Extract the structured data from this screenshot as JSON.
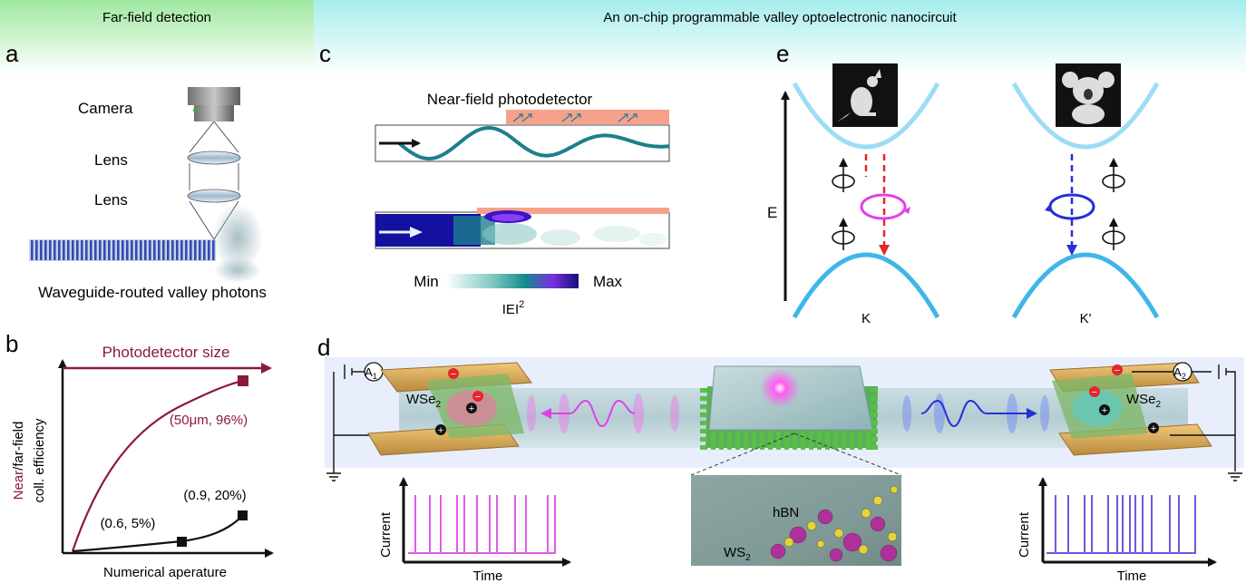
{
  "headers": {
    "left": "Far-field detection",
    "right": "An on-chip programmable valley optoelectronic nanocircuit"
  },
  "panel_a": {
    "letter": "a",
    "camera": "Camera",
    "lens1": "Lens",
    "lens2": "Lens",
    "caption": "Waveguide-routed valley photons"
  },
  "panel_b": {
    "letter": "b",
    "top_label": "Photodetector size",
    "ylabel_near": "Near",
    "ylabel_rest": "/far-field",
    "ylabel_line2": "coll. efficiency",
    "xlabel": "Numerical aperature",
    "red_point": "(50μm, 96%)",
    "black_point1": "(0.6, 5%)",
    "black_point2": "(0.9, 20%)"
  },
  "panel_c": {
    "letter": "c",
    "title": "Near-field photodetector",
    "cb_min": "Min",
    "cb_max": "Max",
    "cb_label_main": "IEI",
    "cb_label_sup": "2"
  },
  "panel_d": {
    "letter": "d",
    "a1_main": "A",
    "a1_sub": "1",
    "a2_main": "A",
    "a2_sub": "2",
    "wse2_main": "WSe",
    "wse2_sub": "2",
    "hbn": "hBN",
    "ws2_main": "WS",
    "ws2_sub": "2",
    "ylabel": "Current",
    "xlabel": "Time",
    "minus": "−",
    "plus": "+"
  },
  "panel_e": {
    "letter": "e",
    "axis": "E",
    "k": "K",
    "kprime": "K'"
  },
  "colors": {
    "header_green": "#9fe8a0",
    "header_cyan": "#a6ecec",
    "crimson": "#8b1a36",
    "magenta": "#e040e8",
    "blue": "#2430d8",
    "band": "#56c8ee",
    "teal": "#1d7f8e",
    "pulse_left": "#e05ce8",
    "pulse_right": "#6a5ae0"
  }
}
